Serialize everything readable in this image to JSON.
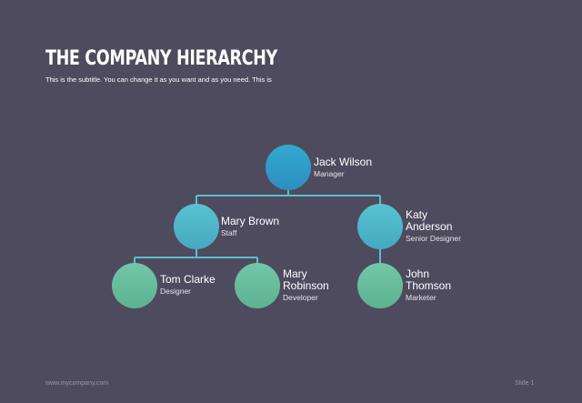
{
  "slide": {
    "title": "THE COMPANY HIERARCHY",
    "subtitle": "This is the subtitle. You can change it as you want and as you need. This is"
  },
  "colors": {
    "background": "#4f4b5e",
    "connector": "#5bbdd0",
    "level_1": "#2c9ac8",
    "level_2": "#4fb7c9",
    "level_3": "#66bd9d"
  },
  "org": {
    "top": {
      "name": "Jack Wilson",
      "role": "Manager"
    },
    "left_manager": {
      "name": "Mary Brown",
      "role": "Staff"
    },
    "right_manager": {
      "name": "Katy\nAnderson",
      "role": "Senior Designer"
    },
    "left_report_1": {
      "name": "Tom Clarke",
      "role": "Designer"
    },
    "left_report_2": {
      "name": "Mary\nRobinson",
      "role": "Developer"
    },
    "right_report_1": {
      "name": "John\nThomson",
      "role": "Marketer"
    }
  },
  "footer": {
    "website": "www.mycompany.com",
    "slide_number": "Slide 1"
  }
}
